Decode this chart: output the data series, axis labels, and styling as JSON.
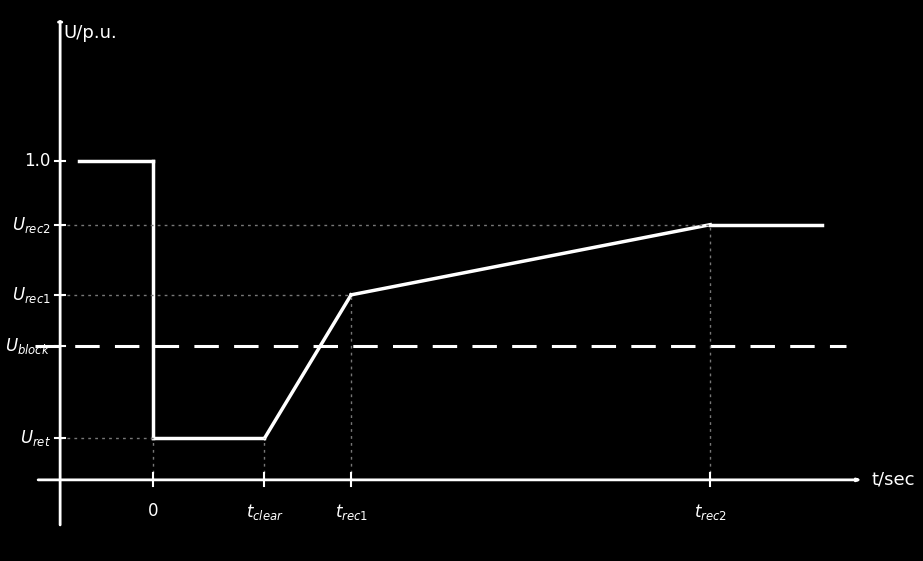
{
  "bg_color": "#000000",
  "line_color": "#ffffff",
  "axis_color": "#ffffff",
  "grid_dotted_color": "#777777",
  "ylabel": "U/p.u.",
  "xlabel": "t/sec",
  "tick_label_1_0": "1.0",
  "x_pre_start": -1.2,
  "x_zero": 0.0,
  "x_clear": 1.8,
  "x_rec1": 3.2,
  "x_rec2": 9.0,
  "x_end": 10.8,
  "x_axis_end": 11.5,
  "y_1p0": 1.0,
  "y_rec2": 0.8,
  "y_rec1": 0.58,
  "y_block": 0.42,
  "y_ret": 0.13,
  "y_zero": 0.0,
  "y_axis_x": -1.5,
  "xlim": [
    -2.0,
    12.2
  ],
  "ylim": [
    -0.25,
    1.5
  ]
}
